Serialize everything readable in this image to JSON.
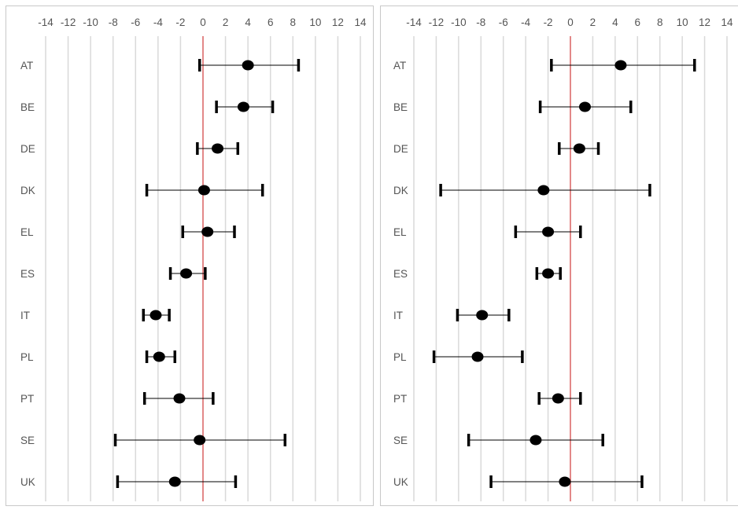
{
  "chart_data": [
    {
      "type": "scatter",
      "title": "",
      "xlabel": "",
      "ylabel": "",
      "xlim": [
        -14,
        14
      ],
      "xticks": [
        "-14",
        "-12",
        "-10",
        "-8",
        "-6",
        "-4",
        "-2",
        "0",
        "2",
        "4",
        "6",
        "8",
        "10",
        "12",
        "14"
      ],
      "gridlines": "vertical",
      "reference_line_x": 0,
      "categories": [
        "AT",
        "BE",
        "DE",
        "DK",
        "EL",
        "ES",
        "IT",
        "PL",
        "PT",
        "SE",
        "UK"
      ],
      "series": [
        {
          "point": [
            4.0,
            3.6,
            1.3,
            0.1,
            0.4,
            -1.5,
            -4.2,
            -3.9,
            -2.1,
            -0.3,
            -2.5
          ],
          "lower": [
            -0.3,
            1.2,
            -0.5,
            -5.0,
            -1.8,
            -2.9,
            -5.3,
            -5.0,
            -5.2,
            -7.8,
            -7.6
          ],
          "upper": [
            8.5,
            6.2,
            3.1,
            5.3,
            2.8,
            0.2,
            -3.0,
            -2.5,
            0.9,
            7.3,
            2.9
          ]
        }
      ],
      "colors": {
        "point": "#000000",
        "reference_line": "#e06666",
        "grid": "#d9d9d9"
      }
    },
    {
      "type": "scatter",
      "title": "",
      "xlabel": "",
      "ylabel": "",
      "xlim": [
        -14,
        14
      ],
      "xticks": [
        "-14",
        "-12",
        "-10",
        "-8",
        "-6",
        "-4",
        "-2",
        "0",
        "2",
        "4",
        "6",
        "8",
        "10",
        "12",
        "14"
      ],
      "gridlines": "vertical",
      "reference_line_x": 0,
      "categories": [
        "AT",
        "BE",
        "DE",
        "DK",
        "EL",
        "ES",
        "IT",
        "PL",
        "PT",
        "SE",
        "UK"
      ],
      "series": [
        {
          "point": [
            4.5,
            1.3,
            0.8,
            -2.4,
            -2.0,
            -2.0,
            -7.9,
            -8.3,
            -1.1,
            -3.1,
            -0.5
          ],
          "lower": [
            -1.7,
            -2.7,
            -1.0,
            -11.6,
            -4.9,
            -3.0,
            -10.1,
            -12.2,
            -2.8,
            -9.1,
            -7.1
          ],
          "upper": [
            11.1,
            5.4,
            2.5,
            7.1,
            0.9,
            -0.9,
            -5.5,
            -4.3,
            0.9,
            2.9,
            6.4
          ]
        }
      ],
      "colors": {
        "point": "#000000",
        "reference_line": "#e06666",
        "grid": "#d9d9d9"
      }
    }
  ]
}
